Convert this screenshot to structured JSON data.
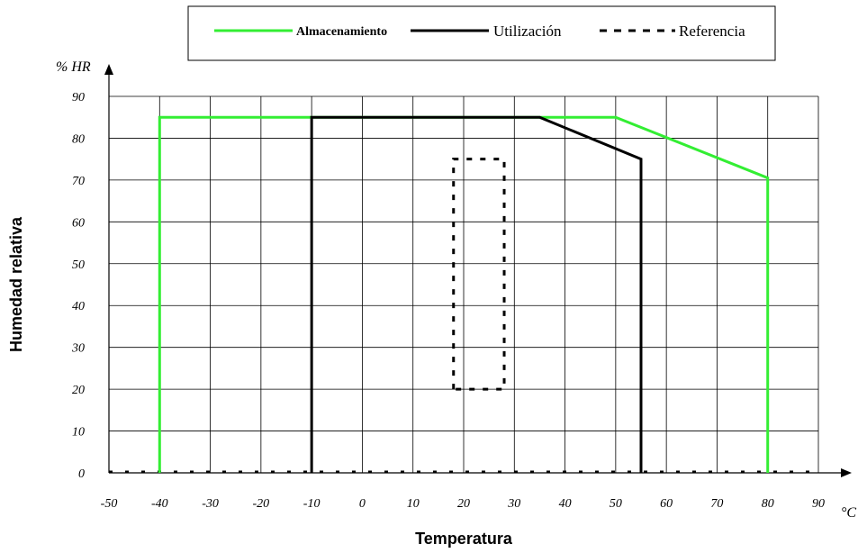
{
  "chart_data": {
    "type": "line",
    "xlabel": "Temperatura",
    "ylabel": "Humedad relativa",
    "x_unit": "°C",
    "y_unit": "% HR",
    "xlim": [
      -50,
      90
    ],
    "ylim": [
      0,
      90
    ],
    "x_ticks": [
      -50,
      -40,
      -30,
      -20,
      -10,
      0,
      10,
      20,
      30,
      40,
      50,
      60,
      70,
      80,
      90
    ],
    "y_ticks": [
      0,
      10,
      20,
      30,
      40,
      50,
      60,
      70,
      80,
      90
    ],
    "grid": true,
    "legend_position": "top",
    "series": [
      {
        "name": "Almacenamiento",
        "color": "#33ee33",
        "style": "solid",
        "points": [
          [
            -40,
            0
          ],
          [
            -40,
            85
          ],
          [
            50,
            85
          ],
          [
            80,
            70.5
          ],
          [
            80,
            0
          ]
        ]
      },
      {
        "name": "Utilización",
        "color": "#000000",
        "style": "solid",
        "points": [
          [
            -10,
            0
          ],
          [
            -10,
            85
          ],
          [
            35,
            85
          ],
          [
            55,
            75
          ],
          [
            55,
            0
          ]
        ]
      },
      {
        "name": "Referencia",
        "color": "#000000",
        "style": "dashed",
        "points": [
          [
            18,
            20
          ],
          [
            18,
            75
          ],
          [
            28,
            75
          ],
          [
            28,
            20
          ],
          [
            18,
            20
          ]
        ]
      }
    ]
  }
}
